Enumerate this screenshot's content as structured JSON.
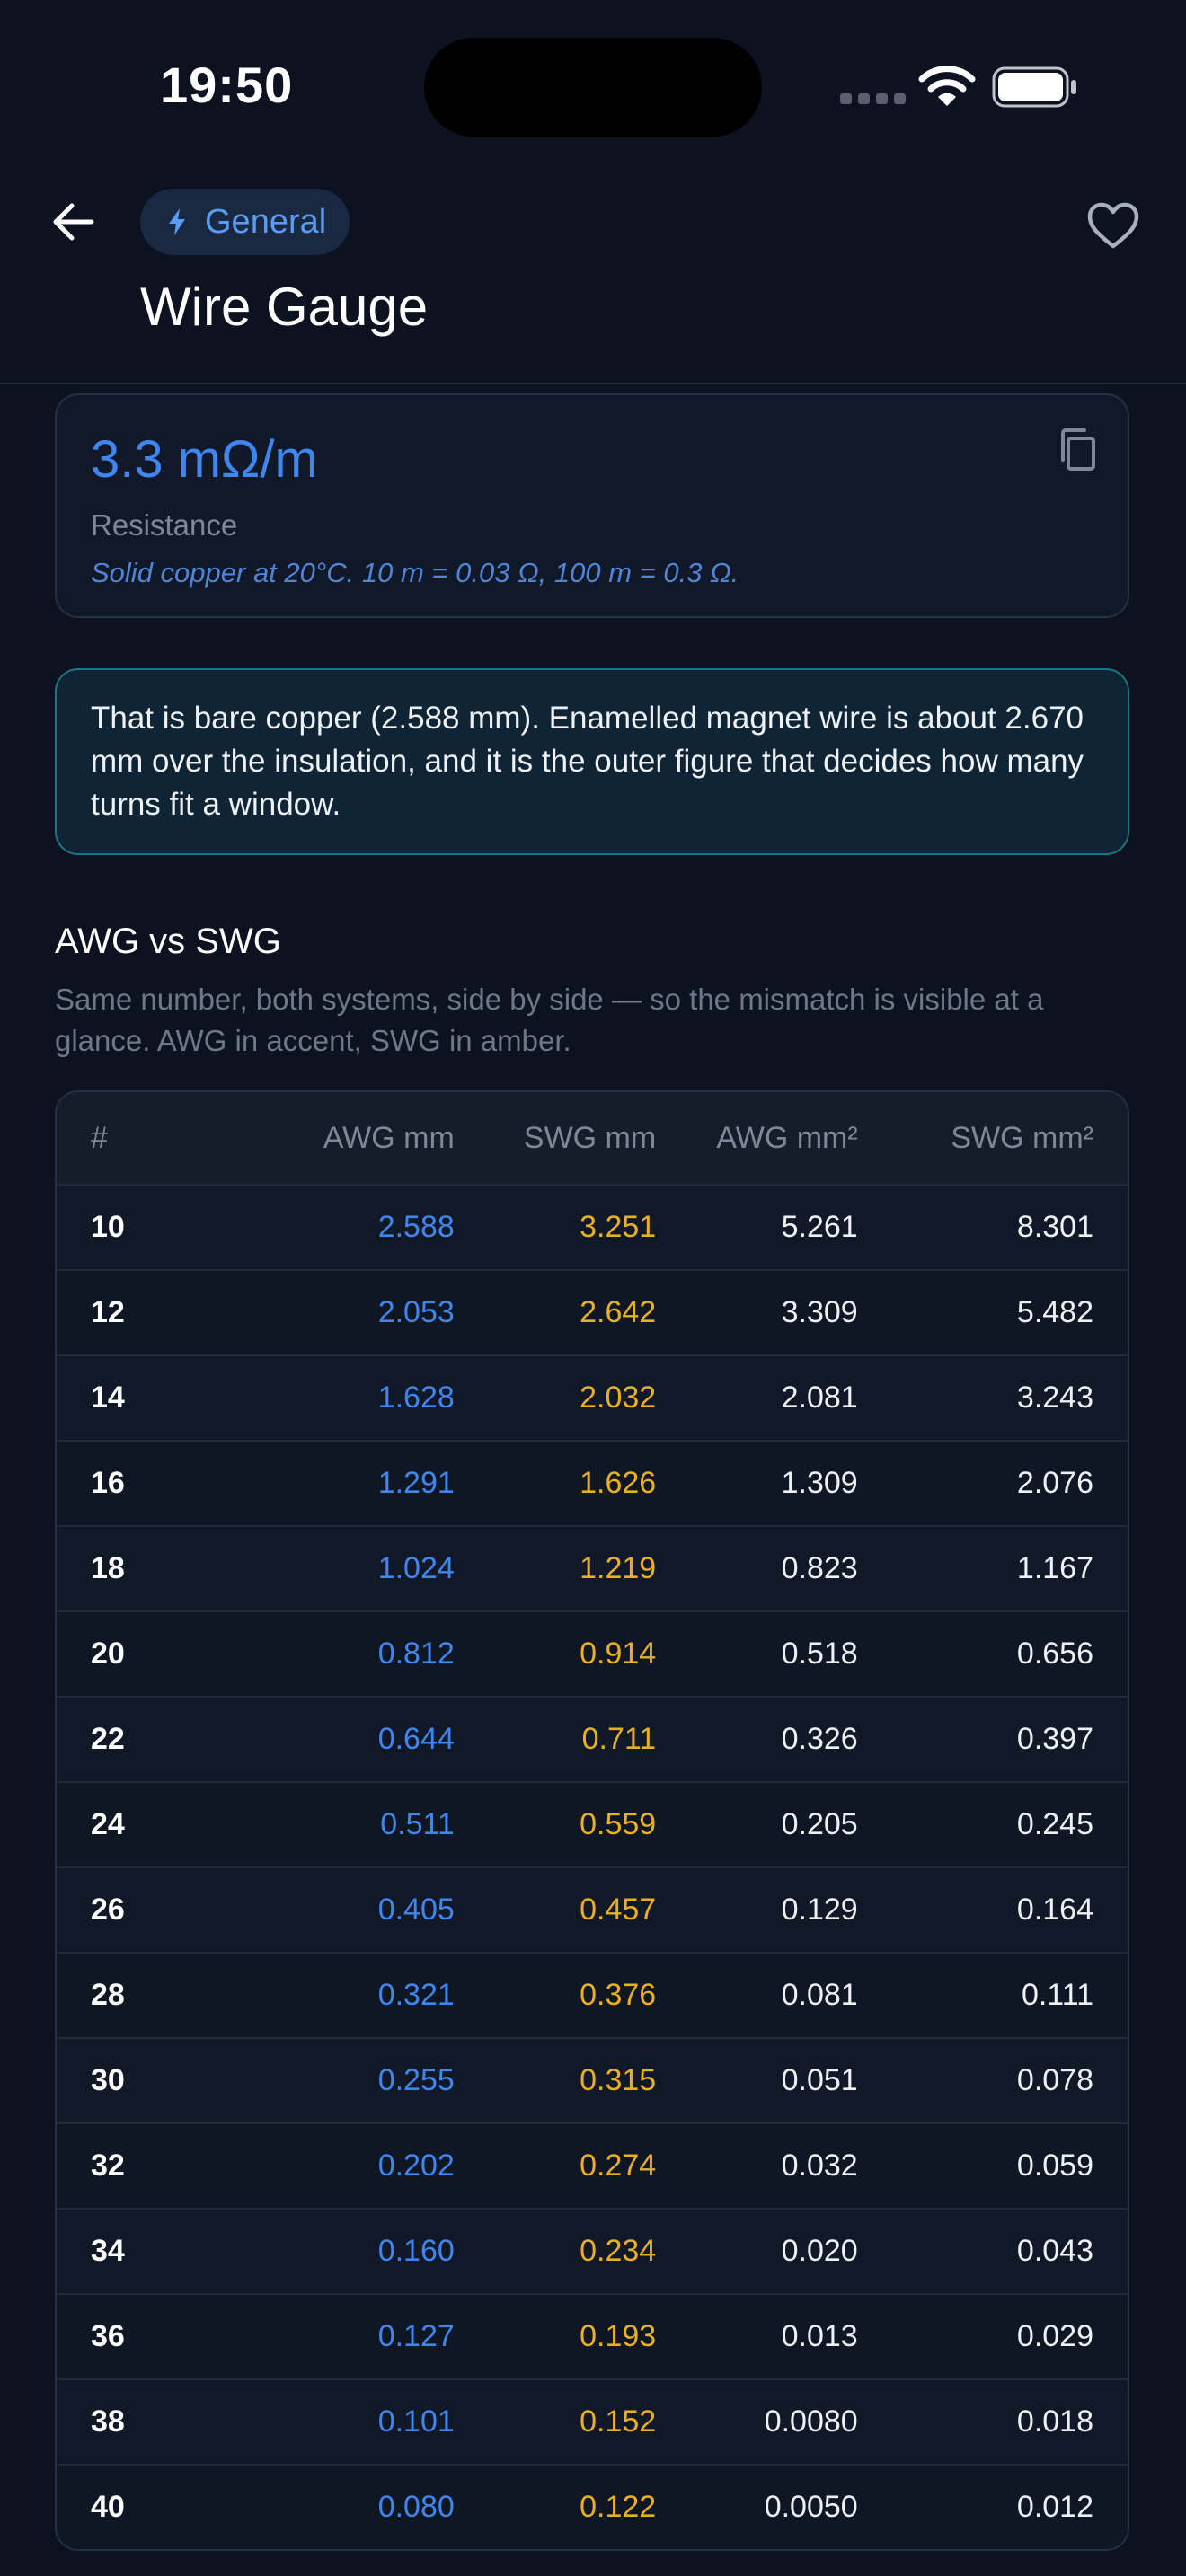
{
  "status": {
    "time": "19:50"
  },
  "header": {
    "category": "General",
    "category_icon": "lightning-icon",
    "title": "Wire Gauge",
    "back_icon": "arrow-left-icon",
    "favorite_icon": "heart-outline-icon"
  },
  "result": {
    "value": "3.3 mΩ/m",
    "label": "Resistance",
    "note": "Solid copper at 20°C. 10 m = 0.03 Ω, 100 m = 0.3 Ω.",
    "copy_icon": "copy-icon"
  },
  "info": "That is bare copper (2.588 mm). Enamelled magnet wire is about 2.670 mm over the insulation, and it is the outer figure that decides how many turns fit a window.",
  "comparison": {
    "title": "AWG vs SWG",
    "subtitle": "Same number, both systems, side by side — so the mismatch is visible at a glance. AWG in accent, SWG in amber.",
    "columns": [
      "#",
      "AWG mm",
      "SWG mm",
      "AWG mm²",
      "SWG mm²"
    ],
    "rows": [
      [
        "10",
        "2.588",
        "3.251",
        "5.261",
        "8.301"
      ],
      [
        "12",
        "2.053",
        "2.642",
        "3.309",
        "5.482"
      ],
      [
        "14",
        "1.628",
        "2.032",
        "2.081",
        "3.243"
      ],
      [
        "16",
        "1.291",
        "1.626",
        "1.309",
        "2.076"
      ],
      [
        "18",
        "1.024",
        "1.219",
        "0.823",
        "1.167"
      ],
      [
        "20",
        "0.812",
        "0.914",
        "0.518",
        "0.656"
      ],
      [
        "22",
        "0.644",
        "0.711",
        "0.326",
        "0.397"
      ],
      [
        "24",
        "0.511",
        "0.559",
        "0.205",
        "0.245"
      ],
      [
        "26",
        "0.405",
        "0.457",
        "0.129",
        "0.164"
      ],
      [
        "28",
        "0.321",
        "0.376",
        "0.081",
        "0.111"
      ],
      [
        "30",
        "0.255",
        "0.315",
        "0.051",
        "0.078"
      ],
      [
        "32",
        "0.202",
        "0.274",
        "0.032",
        "0.059"
      ],
      [
        "34",
        "0.160",
        "0.234",
        "0.020",
        "0.043"
      ],
      [
        "36",
        "0.127",
        "0.193",
        "0.013",
        "0.029"
      ],
      [
        "38",
        "0.101",
        "0.152",
        "0.0080",
        "0.018"
      ],
      [
        "40",
        "0.080",
        "0.122",
        "0.0050",
        "0.012"
      ]
    ]
  },
  "colors": {
    "accent": "#3f86ee",
    "amber": "#e9b022",
    "background": "#0c1220",
    "info_border": "#1f7482"
  }
}
